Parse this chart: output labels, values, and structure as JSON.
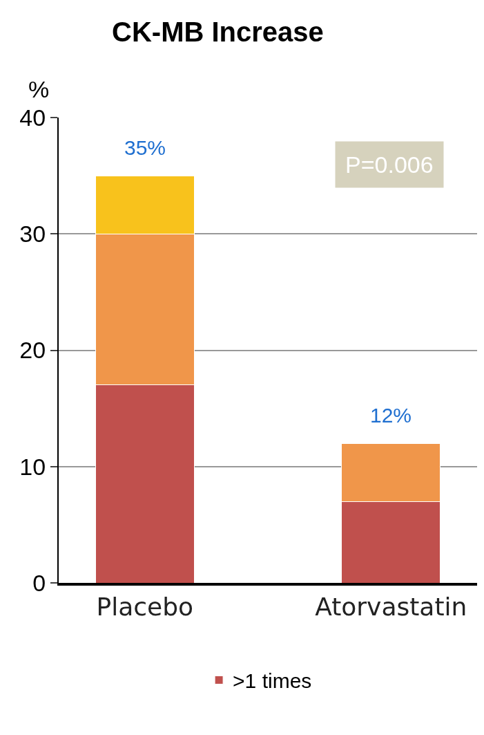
{
  "chart_data": {
    "type": "bar",
    "title": "CK-MB Increase",
    "ylabel": "%",
    "categories": [
      "Placebo",
      "Atorvastatin"
    ],
    "stacked": true,
    "series": [
      {
        "name": ">1 times",
        "color": "#c0504d",
        "values": [
          17,
          7
        ]
      },
      {
        "color": "#f0964a",
        "values": [
          13,
          5
        ]
      },
      {
        "color": "#f8c21c",
        "values": [
          5,
          null
        ]
      }
    ],
    "totals": [
      "35%",
      "12%"
    ],
    "annotations": [
      "P=0.006"
    ],
    "ylim": [
      0,
      40
    ],
    "yticks": [
      0,
      10,
      20,
      30,
      40
    ],
    "grid": "y",
    "legend": "bottom"
  }
}
